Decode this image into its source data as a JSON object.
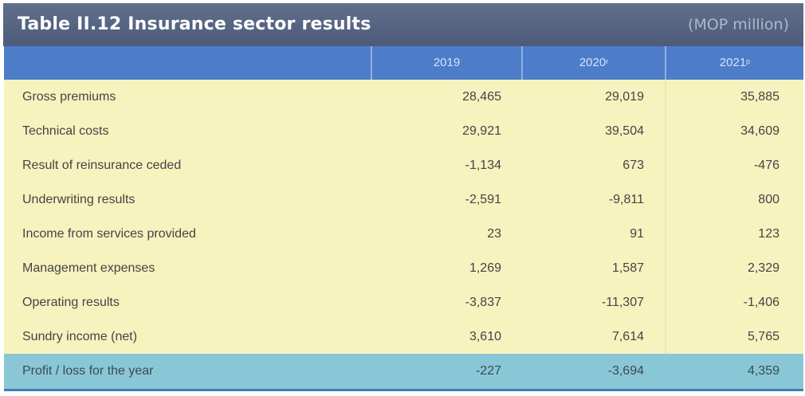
{
  "title": "Table II.12 Insurance sector results",
  "unit": "(MOP million)",
  "columns": [
    {
      "year": "2019",
      "mark": ""
    },
    {
      "year": "2020",
      "mark": "r"
    },
    {
      "year": "2021",
      "mark": "p"
    }
  ],
  "rows": [
    {
      "label": "Gross premiums",
      "values": [
        "28,465",
        "29,019",
        "35,885"
      ]
    },
    {
      "label": "Technical costs",
      "values": [
        "29,921",
        "39,504",
        "34,609"
      ]
    },
    {
      "label": "Result of reinsurance ceded",
      "values": [
        "-1,134",
        "673",
        "-476"
      ]
    },
    {
      "label": "Underwriting results",
      "values": [
        "-2,591",
        "-9,811",
        "800"
      ]
    },
    {
      "label": "Income from services provided",
      "values": [
        "23",
        "91",
        "123"
      ]
    },
    {
      "label": "Management expenses",
      "values": [
        "1,269",
        "1,587",
        "2,329"
      ]
    },
    {
      "label": "Operating results",
      "values": [
        "-3,837",
        "-11,307",
        "-1,406"
      ]
    },
    {
      "label": "Sundry income (net)",
      "values": [
        "3,610",
        "7,614",
        "5,765"
      ]
    }
  ],
  "total": {
    "label": "Profit / loss for the year",
    "values": [
      "-227",
      "-3,694",
      "4,359"
    ]
  },
  "colors": {
    "title_bg": "#546482",
    "header_bg": "#4d7cc9",
    "body_bg": "#f7f3bf",
    "total_bg": "#8ac7d6"
  }
}
